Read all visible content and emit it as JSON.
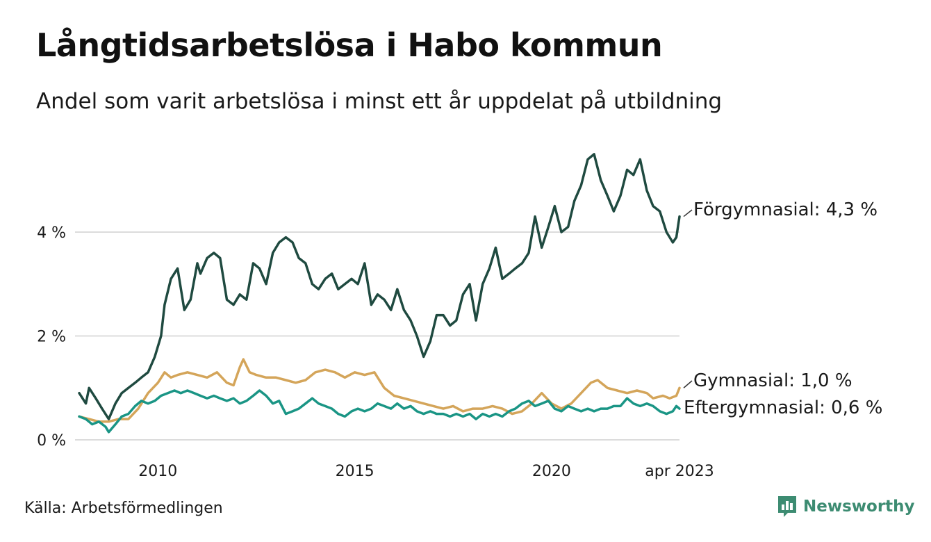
{
  "title": "Långtidsarbetslösa i Habo kommun",
  "subtitle": "Andel som varit arbetslösa i minst ett år uppdelat på utbildning",
  "source": "Källa: Arbetsförmedlingen",
  "brand": {
    "name": "Newsworthy",
    "icon": "bar-chart-speech-icon"
  },
  "chart_data": {
    "type": "line",
    "ylim": [
      0,
      6
    ],
    "xlim": [
      2008.0,
      2023.25
    ],
    "y_ticks": [
      {
        "value": 0,
        "label": "0 %"
      },
      {
        "value": 2,
        "label": "2 %"
      },
      {
        "value": 4,
        "label": "4 %"
      }
    ],
    "x_ticks": [
      {
        "value": 2010.0,
        "label": "2010"
      },
      {
        "value": 2015.0,
        "label": "2015"
      },
      {
        "value": 2020.0,
        "label": "2020"
      },
      {
        "value": 2023.25,
        "label": "apr 2023"
      }
    ],
    "grid": true,
    "legend": "direct labels at line ends",
    "series": [
      {
        "name": "Förgymnasial",
        "end_label": "Förgymnasial: 4,3 %",
        "color": "#1f4a40",
        "points": [
          [
            2008.0,
            0.9
          ],
          [
            2008.17,
            0.7
          ],
          [
            2008.25,
            1.0
          ],
          [
            2008.42,
            0.8
          ],
          [
            2008.58,
            0.6
          ],
          [
            2008.75,
            0.4
          ],
          [
            2008.92,
            0.7
          ],
          [
            2009.08,
            0.9
          ],
          [
            2009.25,
            1.0
          ],
          [
            2009.42,
            1.1
          ],
          [
            2009.58,
            1.2
          ],
          [
            2009.75,
            1.3
          ],
          [
            2009.92,
            1.6
          ],
          [
            2010.08,
            2.0
          ],
          [
            2010.17,
            2.6
          ],
          [
            2010.33,
            3.1
          ],
          [
            2010.5,
            3.3
          ],
          [
            2010.67,
            2.5
          ],
          [
            2010.83,
            2.7
          ],
          [
            2011.0,
            3.4
          ],
          [
            2011.08,
            3.2
          ],
          [
            2011.25,
            3.5
          ],
          [
            2011.42,
            3.6
          ],
          [
            2011.58,
            3.5
          ],
          [
            2011.75,
            2.7
          ],
          [
            2011.92,
            2.6
          ],
          [
            2012.08,
            2.8
          ],
          [
            2012.25,
            2.7
          ],
          [
            2012.42,
            3.4
          ],
          [
            2012.58,
            3.3
          ],
          [
            2012.75,
            3.0
          ],
          [
            2012.92,
            3.6
          ],
          [
            2013.08,
            3.8
          ],
          [
            2013.25,
            3.9
          ],
          [
            2013.42,
            3.8
          ],
          [
            2013.58,
            3.5
          ],
          [
            2013.75,
            3.4
          ],
          [
            2013.92,
            3.0
          ],
          [
            2014.08,
            2.9
          ],
          [
            2014.25,
            3.1
          ],
          [
            2014.42,
            3.2
          ],
          [
            2014.58,
            2.9
          ],
          [
            2014.75,
            3.0
          ],
          [
            2014.92,
            3.1
          ],
          [
            2015.08,
            3.0
          ],
          [
            2015.25,
            3.4
          ],
          [
            2015.42,
            2.6
          ],
          [
            2015.58,
            2.8
          ],
          [
            2015.75,
            2.7
          ],
          [
            2015.92,
            2.5
          ],
          [
            2016.08,
            2.9
          ],
          [
            2016.25,
            2.5
          ],
          [
            2016.42,
            2.3
          ],
          [
            2016.58,
            2.0
          ],
          [
            2016.75,
            1.6
          ],
          [
            2016.92,
            1.9
          ],
          [
            2017.08,
            2.4
          ],
          [
            2017.25,
            2.4
          ],
          [
            2017.42,
            2.2
          ],
          [
            2017.58,
            2.3
          ],
          [
            2017.75,
            2.8
          ],
          [
            2017.92,
            3.0
          ],
          [
            2018.08,
            2.3
          ],
          [
            2018.25,
            3.0
          ],
          [
            2018.42,
            3.3
          ],
          [
            2018.58,
            3.7
          ],
          [
            2018.75,
            3.1
          ],
          [
            2018.92,
            3.2
          ],
          [
            2019.08,
            3.3
          ],
          [
            2019.25,
            3.4
          ],
          [
            2019.42,
            3.6
          ],
          [
            2019.58,
            4.3
          ],
          [
            2019.75,
            3.7
          ],
          [
            2019.92,
            4.1
          ],
          [
            2020.08,
            4.5
          ],
          [
            2020.25,
            4.0
          ],
          [
            2020.42,
            4.1
          ],
          [
            2020.58,
            4.6
          ],
          [
            2020.75,
            4.9
          ],
          [
            2020.92,
            5.4
          ],
          [
            2021.08,
            5.5
          ],
          [
            2021.25,
            5.0
          ],
          [
            2021.42,
            4.7
          ],
          [
            2021.58,
            4.4
          ],
          [
            2021.75,
            4.7
          ],
          [
            2021.92,
            5.2
          ],
          [
            2022.08,
            5.1
          ],
          [
            2022.25,
            5.4
          ],
          [
            2022.42,
            4.8
          ],
          [
            2022.58,
            4.5
          ],
          [
            2022.75,
            4.4
          ],
          [
            2022.92,
            4.0
          ],
          [
            2023.08,
            3.8
          ],
          [
            2023.17,
            3.9
          ],
          [
            2023.25,
            4.3
          ]
        ]
      },
      {
        "name": "Gymnasial",
        "end_label": "Gymnasial: 1,0 %",
        "color": "#d4a55a",
        "points": [
          [
            2008.0,
            0.45
          ],
          [
            2008.25,
            0.4
          ],
          [
            2008.5,
            0.35
          ],
          [
            2008.75,
            0.35
          ],
          [
            2009.0,
            0.4
          ],
          [
            2009.25,
            0.4
          ],
          [
            2009.5,
            0.6
          ],
          [
            2009.75,
            0.9
          ],
          [
            2010.0,
            1.1
          ],
          [
            2010.17,
            1.3
          ],
          [
            2010.33,
            1.2
          ],
          [
            2010.5,
            1.25
          ],
          [
            2010.75,
            1.3
          ],
          [
            2011.0,
            1.25
          ],
          [
            2011.25,
            1.2
          ],
          [
            2011.5,
            1.3
          ],
          [
            2011.75,
            1.1
          ],
          [
            2011.92,
            1.05
          ],
          [
            2012.08,
            1.4
          ],
          [
            2012.17,
            1.55
          ],
          [
            2012.33,
            1.3
          ],
          [
            2012.5,
            1.25
          ],
          [
            2012.75,
            1.2
          ],
          [
            2013.0,
            1.2
          ],
          [
            2013.25,
            1.15
          ],
          [
            2013.5,
            1.1
          ],
          [
            2013.75,
            1.15
          ],
          [
            2014.0,
            1.3
          ],
          [
            2014.25,
            1.35
          ],
          [
            2014.5,
            1.3
          ],
          [
            2014.75,
            1.2
          ],
          [
            2015.0,
            1.3
          ],
          [
            2015.25,
            1.25
          ],
          [
            2015.5,
            1.3
          ],
          [
            2015.75,
            1.0
          ],
          [
            2016.0,
            0.85
          ],
          [
            2016.25,
            0.8
          ],
          [
            2016.5,
            0.75
          ],
          [
            2016.75,
            0.7
          ],
          [
            2017.0,
            0.65
          ],
          [
            2017.25,
            0.6
          ],
          [
            2017.5,
            0.65
          ],
          [
            2017.75,
            0.55
          ],
          [
            2018.0,
            0.6
          ],
          [
            2018.25,
            0.6
          ],
          [
            2018.5,
            0.65
          ],
          [
            2018.75,
            0.6
          ],
          [
            2019.0,
            0.5
          ],
          [
            2019.25,
            0.55
          ],
          [
            2019.5,
            0.7
          ],
          [
            2019.75,
            0.9
          ],
          [
            2020.0,
            0.7
          ],
          [
            2020.25,
            0.6
          ],
          [
            2020.5,
            0.7
          ],
          [
            2020.75,
            0.9
          ],
          [
            2021.0,
            1.1
          ],
          [
            2021.17,
            1.15
          ],
          [
            2021.42,
            1.0
          ],
          [
            2021.67,
            0.95
          ],
          [
            2021.92,
            0.9
          ],
          [
            2022.17,
            0.95
          ],
          [
            2022.42,
            0.9
          ],
          [
            2022.58,
            0.8
          ],
          [
            2022.83,
            0.85
          ],
          [
            2023.0,
            0.8
          ],
          [
            2023.17,
            0.85
          ],
          [
            2023.25,
            1.0
          ]
        ]
      },
      {
        "name": "Eftergymnasial",
        "end_label": "Eftergymnasial: 0,6 %",
        "color": "#1a9585",
        "points": [
          [
            2008.0,
            0.45
          ],
          [
            2008.17,
            0.4
          ],
          [
            2008.33,
            0.3
          ],
          [
            2008.5,
            0.35
          ],
          [
            2008.67,
            0.25
          ],
          [
            2008.75,
            0.15
          ],
          [
            2008.92,
            0.3
          ],
          [
            2009.08,
            0.45
          ],
          [
            2009.25,
            0.5
          ],
          [
            2009.42,
            0.65
          ],
          [
            2009.58,
            0.75
          ],
          [
            2009.75,
            0.7
          ],
          [
            2009.92,
            0.75
          ],
          [
            2010.08,
            0.85
          ],
          [
            2010.25,
            0.9
          ],
          [
            2010.42,
            0.95
          ],
          [
            2010.58,
            0.9
          ],
          [
            2010.75,
            0.95
          ],
          [
            2010.92,
            0.9
          ],
          [
            2011.08,
            0.85
          ],
          [
            2011.25,
            0.8
          ],
          [
            2011.42,
            0.85
          ],
          [
            2011.58,
            0.8
          ],
          [
            2011.75,
            0.75
          ],
          [
            2011.92,
            0.8
          ],
          [
            2012.08,
            0.7
          ],
          [
            2012.25,
            0.75
          ],
          [
            2012.42,
            0.85
          ],
          [
            2012.58,
            0.95
          ],
          [
            2012.75,
            0.85
          ],
          [
            2012.92,
            0.7
          ],
          [
            2013.08,
            0.75
          ],
          [
            2013.25,
            0.5
          ],
          [
            2013.42,
            0.55
          ],
          [
            2013.58,
            0.6
          ],
          [
            2013.75,
            0.7
          ],
          [
            2013.92,
            0.8
          ],
          [
            2014.08,
            0.7
          ],
          [
            2014.25,
            0.65
          ],
          [
            2014.42,
            0.6
          ],
          [
            2014.58,
            0.5
          ],
          [
            2014.75,
            0.45
          ],
          [
            2014.92,
            0.55
          ],
          [
            2015.08,
            0.6
          ],
          [
            2015.25,
            0.55
          ],
          [
            2015.42,
            0.6
          ],
          [
            2015.58,
            0.7
          ],
          [
            2015.75,
            0.65
          ],
          [
            2015.92,
            0.6
          ],
          [
            2016.08,
            0.7
          ],
          [
            2016.25,
            0.6
          ],
          [
            2016.42,
            0.65
          ],
          [
            2016.58,
            0.55
          ],
          [
            2016.75,
            0.5
          ],
          [
            2016.92,
            0.55
          ],
          [
            2017.08,
            0.5
          ],
          [
            2017.25,
            0.5
          ],
          [
            2017.42,
            0.45
          ],
          [
            2017.58,
            0.5
          ],
          [
            2017.75,
            0.45
          ],
          [
            2017.92,
            0.5
          ],
          [
            2018.08,
            0.4
          ],
          [
            2018.25,
            0.5
          ],
          [
            2018.42,
            0.45
          ],
          [
            2018.58,
            0.5
          ],
          [
            2018.75,
            0.45
          ],
          [
            2018.92,
            0.55
          ],
          [
            2019.08,
            0.6
          ],
          [
            2019.25,
            0.7
          ],
          [
            2019.42,
            0.75
          ],
          [
            2019.58,
            0.65
          ],
          [
            2019.75,
            0.7
          ],
          [
            2019.92,
            0.75
          ],
          [
            2020.08,
            0.6
          ],
          [
            2020.25,
            0.55
          ],
          [
            2020.42,
            0.65
          ],
          [
            2020.58,
            0.6
          ],
          [
            2020.75,
            0.55
          ],
          [
            2020.92,
            0.6
          ],
          [
            2021.08,
            0.55
          ],
          [
            2021.25,
            0.6
          ],
          [
            2021.42,
            0.6
          ],
          [
            2021.58,
            0.65
          ],
          [
            2021.75,
            0.65
          ],
          [
            2021.92,
            0.8
          ],
          [
            2022.08,
            0.7
          ],
          [
            2022.25,
            0.65
          ],
          [
            2022.42,
            0.7
          ],
          [
            2022.58,
            0.65
          ],
          [
            2022.75,
            0.55
          ],
          [
            2022.92,
            0.5
          ],
          [
            2023.08,
            0.55
          ],
          [
            2023.17,
            0.65
          ],
          [
            2023.25,
            0.6
          ]
        ]
      }
    ]
  }
}
